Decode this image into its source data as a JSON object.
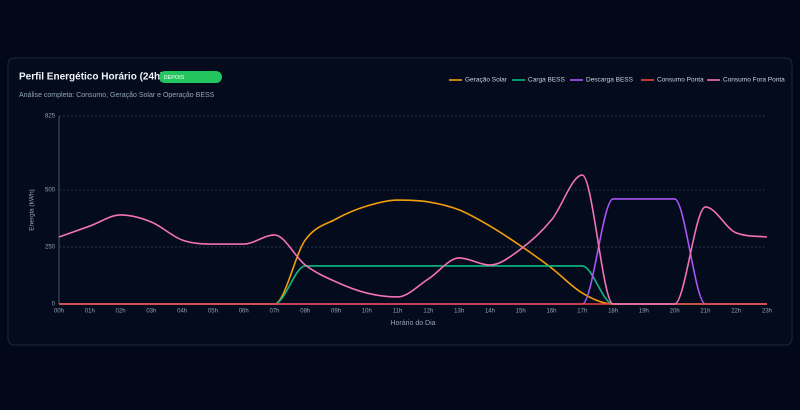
{
  "chart_data": {
    "type": "line",
    "title": "Perfil Energético Horário (24h)",
    "badge": "DEPOIS",
    "subtitle": "Análise completa: Consumo, Geração Solar e Operação BESS",
    "x_label": "Horário do Dia",
    "y_label": "Energia (kWh)",
    "categories": [
      "00h",
      "01h",
      "02h",
      "03h",
      "04h",
      "05h",
      "06h",
      "07h",
      "08h",
      "09h",
      "10h",
      "11h",
      "12h",
      "13h",
      "14h",
      "15h",
      "16h",
      "17h",
      "18h",
      "19h",
      "20h",
      "21h",
      "22h",
      "23h"
    ],
    "ylim": [
      0,
      825
    ],
    "yticks": [
      0,
      250,
      500,
      825
    ],
    "grid": true,
    "legend": "top-right",
    "series": [
      {
        "name": "Geração Solar",
        "color": "#f59e0b",
        "values": [
          0,
          0,
          0,
          0,
          0,
          0,
          0,
          0,
          281,
          373,
          430,
          456,
          448,
          413,
          342,
          255,
          158,
          48,
          0,
          0,
          0,
          0,
          0,
          0
        ]
      },
      {
        "name": "Carga BESS",
        "color": "#10b981",
        "values": [
          0,
          0,
          0,
          0,
          0,
          0,
          0,
          0,
          167,
          167,
          167,
          167,
          167,
          167,
          167,
          167,
          167,
          167,
          0,
          0,
          0,
          0,
          0,
          0
        ]
      },
      {
        "name": "Descarga BESS",
        "color": "#a855f7",
        "values": [
          0,
          0,
          0,
          0,
          0,
          0,
          0,
          0,
          0,
          0,
          0,
          0,
          0,
          0,
          0,
          0,
          0,
          0,
          461,
          461,
          461,
          0,
          0,
          0
        ]
      },
      {
        "name": "Consumo Ponta",
        "color": "#ef4444",
        "values": [
          0,
          0,
          0,
          0,
          0,
          0,
          0,
          0,
          0,
          0,
          0,
          0,
          0,
          0,
          0,
          0,
          0,
          0,
          0,
          0,
          0,
          0,
          0,
          0
        ]
      },
      {
        "name": "Consumo Fora Ponta",
        "color": "#f472b6",
        "values": [
          294,
          342,
          391,
          360,
          281,
          263,
          263,
          303,
          171,
          97,
          48,
          31,
          110,
          202,
          171,
          241,
          369,
          566,
          0,
          0,
          0,
          426,
          312,
          294
        ]
      }
    ]
  }
}
